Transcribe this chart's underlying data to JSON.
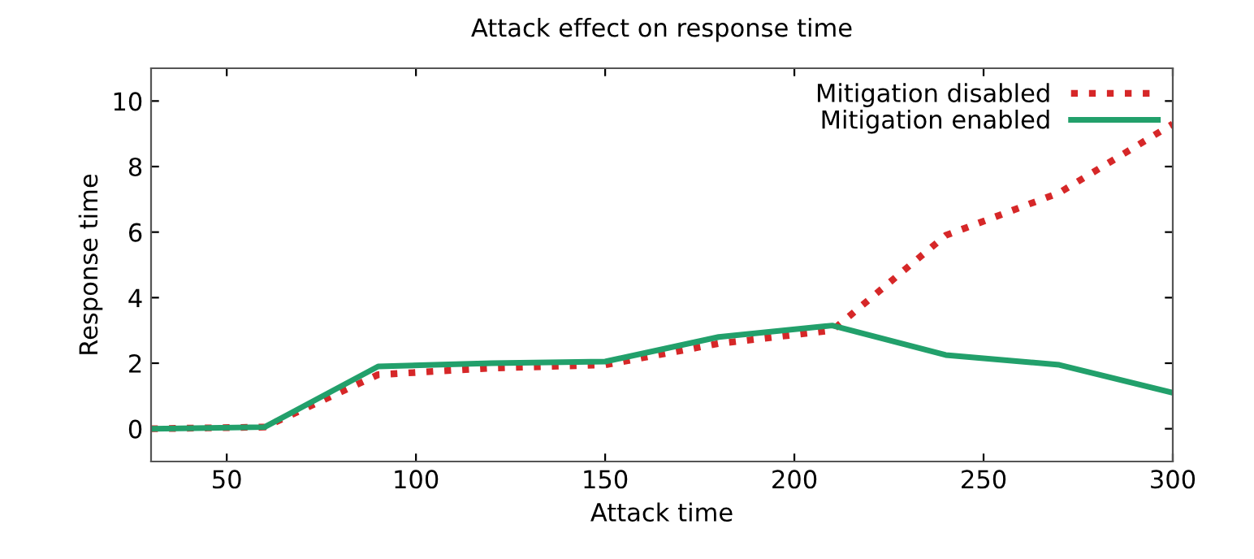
{
  "chart_data": {
    "type": "line",
    "title": "Attack effect on response time",
    "xlabel": "Attack time",
    "ylabel": "Response time",
    "x": [
      30,
      60,
      90,
      120,
      150,
      180,
      210,
      240,
      270,
      300
    ],
    "series": [
      {
        "name": "Mitigation disabled",
        "color": "#d62728",
        "line_style": "dotted",
        "values": [
          0,
          0.05,
          1.65,
          1.85,
          1.95,
          2.6,
          3.0,
          5.9,
          7.2,
          9.3
        ]
      },
      {
        "name": "Mitigation enabled",
        "color": "#22a06b",
        "line_style": "solid",
        "values": [
          0,
          0.05,
          1.9,
          2.0,
          2.05,
          2.8,
          3.15,
          2.25,
          1.95,
          1.1
        ]
      }
    ],
    "xlim": [
      30,
      300
    ],
    "xticks": [
      50,
      100,
      150,
      200,
      250,
      300
    ],
    "ylim": [
      -1,
      11
    ],
    "yticks": [
      0,
      2,
      4,
      6,
      8,
      10
    ],
    "grid": false,
    "legend": "top right",
    "marker": "none"
  }
}
